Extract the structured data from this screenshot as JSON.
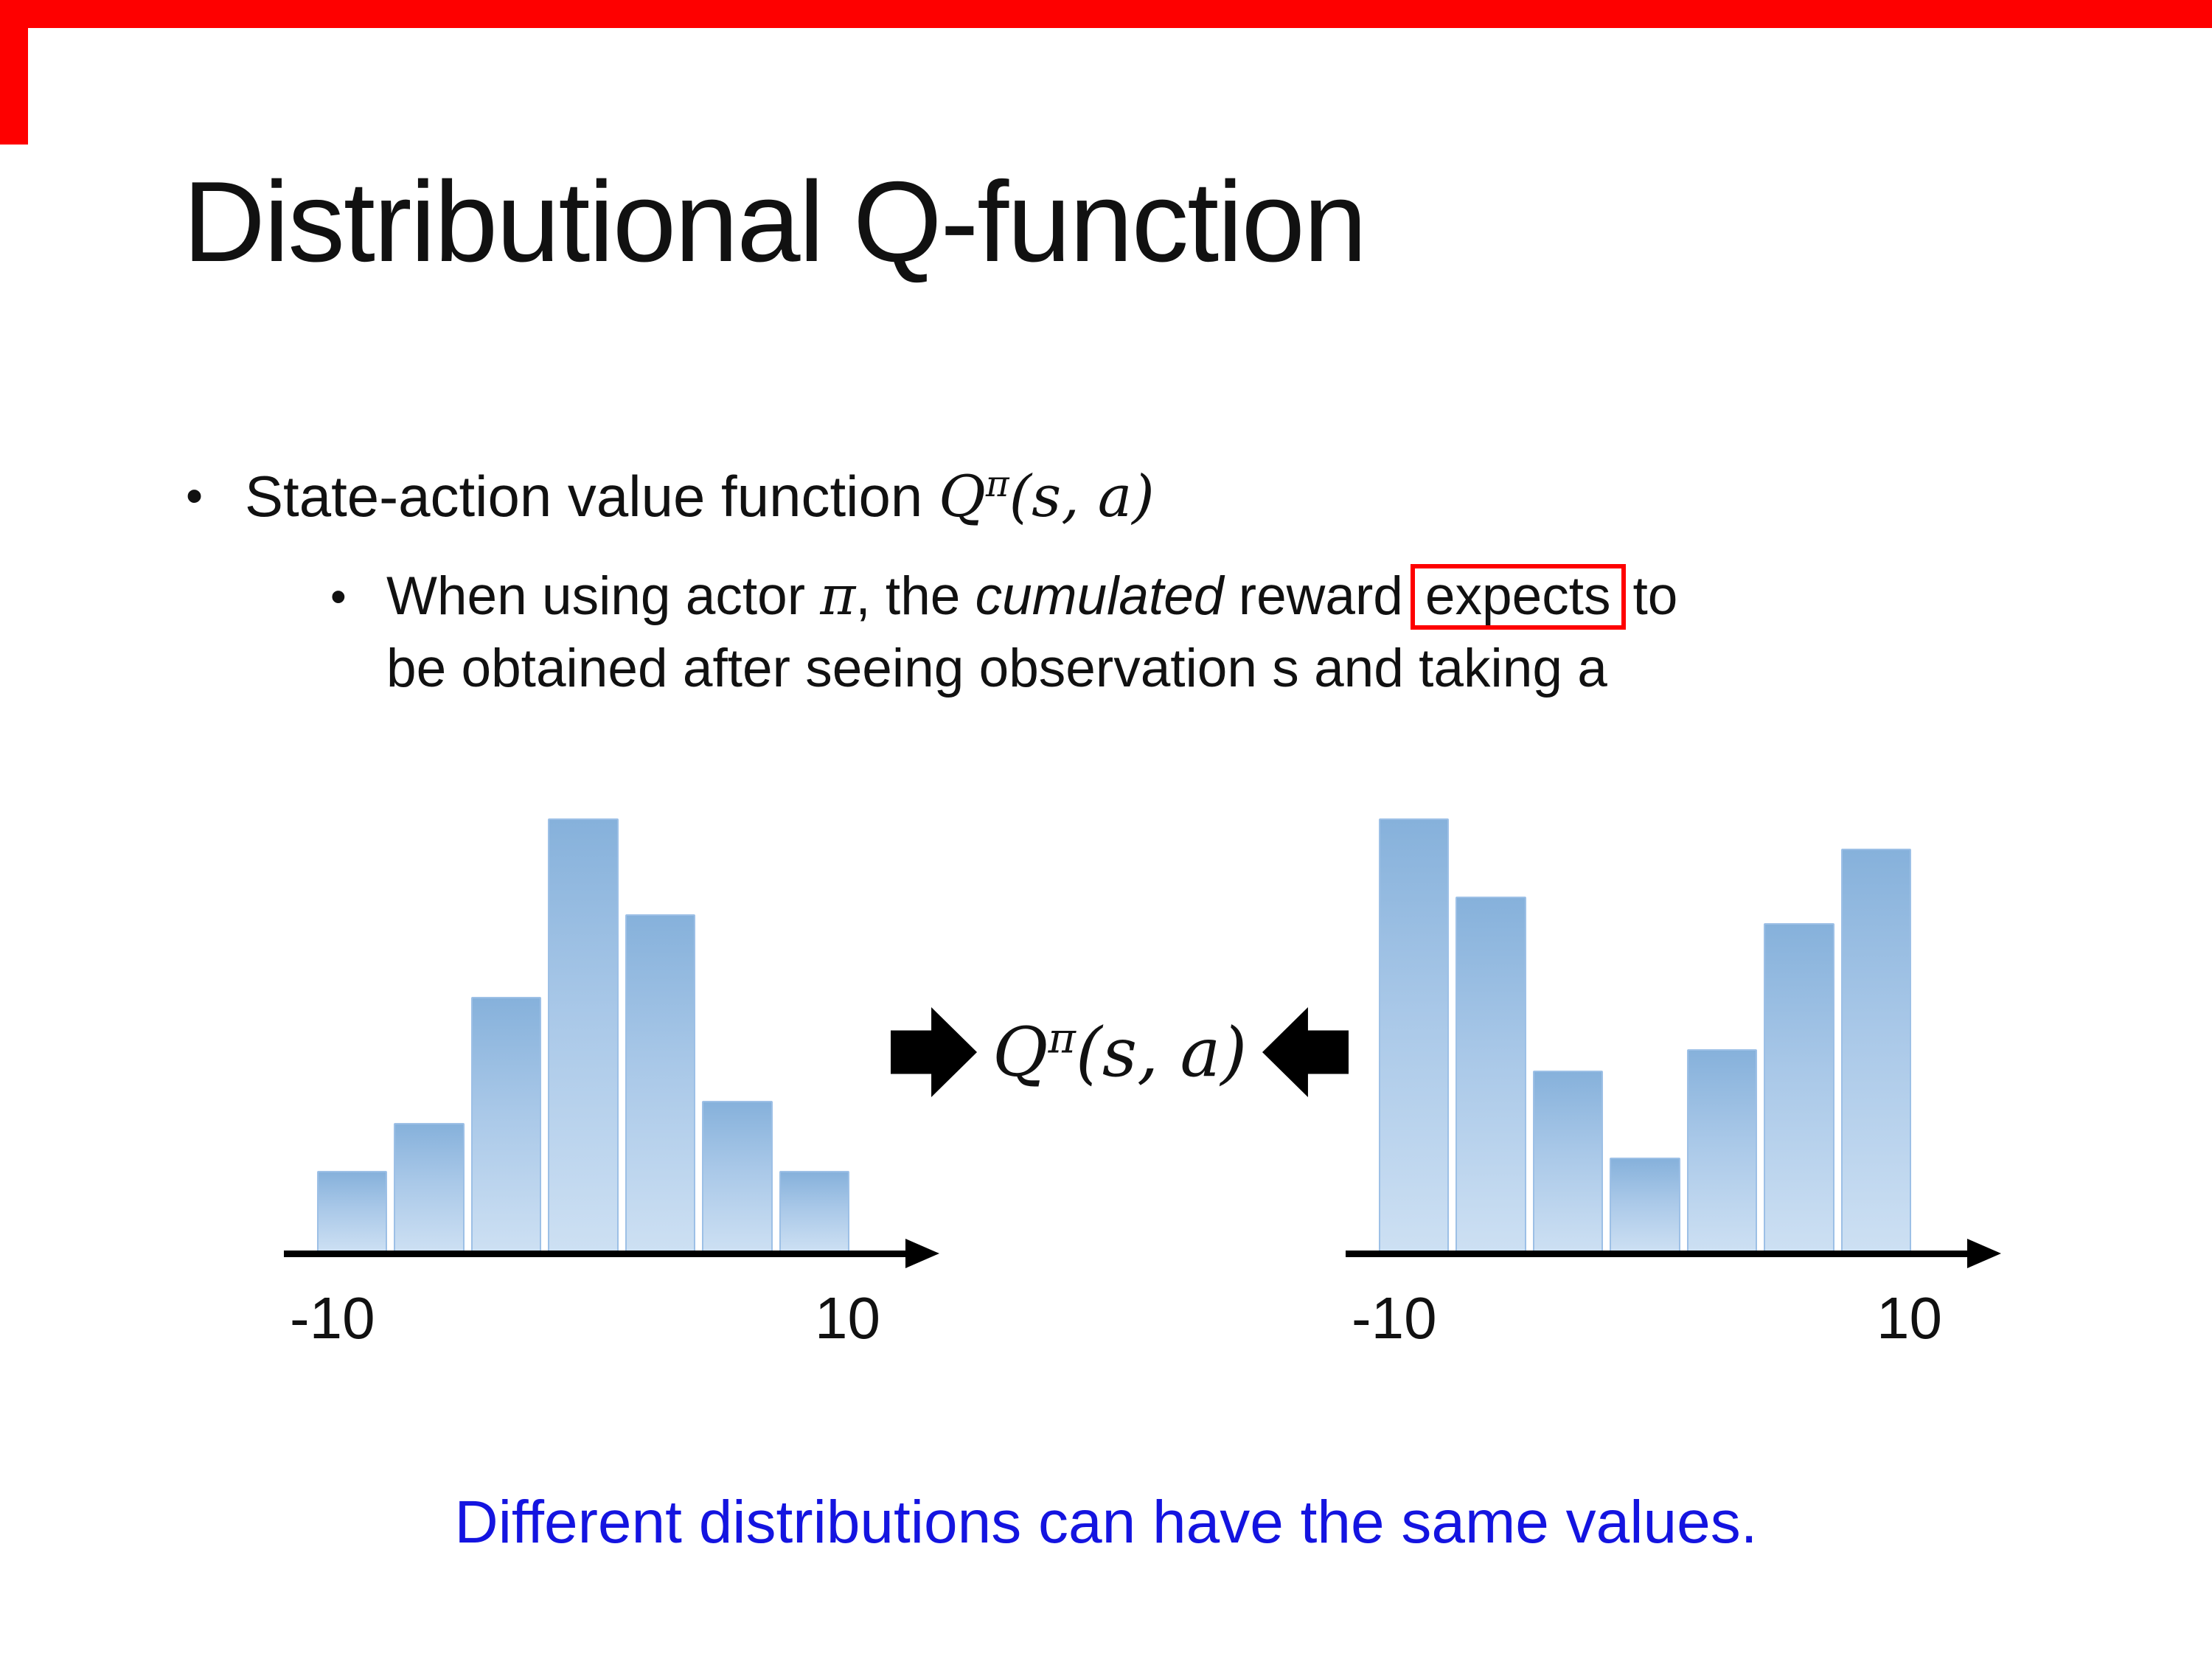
{
  "slide": {
    "title": "Distributional Q-function",
    "bullet_char": "•",
    "bullet_main": {
      "text": "State-action value function ",
      "formula_q": "Q",
      "formula_sup": "π",
      "formula_args": "(s, a)"
    },
    "bullet_sub": {
      "pre": "When using actor ",
      "pi": "π",
      "mid1": ", the ",
      "italic_word": "cumulated",
      "mid2": " reward",
      "boxed_word": "expects",
      "post1": "to",
      "line2": "be obtained after seeing observation s and taking a"
    },
    "center_formula": {
      "q": "Q",
      "sup": "π",
      "args": "(s, a)"
    },
    "note": "Different distributions can have the same values."
  },
  "colors": {
    "accent_red": "#fe0000",
    "note_blue": "#1414e0",
    "bar_fill_top": "#86b1db",
    "bar_fill_bottom": "#cde0f3",
    "bar_border": "#9dc0e6"
  },
  "chart_data": [
    {
      "type": "bar",
      "name": "left-histogram",
      "title": "",
      "xlabel_left": "-10",
      "xlabel_right": "10",
      "x_range": [
        -10,
        10
      ],
      "values": [
        0.19,
        0.3,
        0.59,
        1.0,
        0.78,
        0.35,
        0.19
      ],
      "shape": "unimodal bell-like distribution"
    },
    {
      "type": "bar",
      "name": "right-histogram",
      "title": "",
      "xlabel_left": "-10",
      "xlabel_right": "10",
      "x_range": [
        -10,
        10
      ],
      "values": [
        1.0,
        0.82,
        0.42,
        0.22,
        0.47,
        0.76,
        0.93
      ],
      "shape": "bimodal U-like distribution"
    }
  ]
}
